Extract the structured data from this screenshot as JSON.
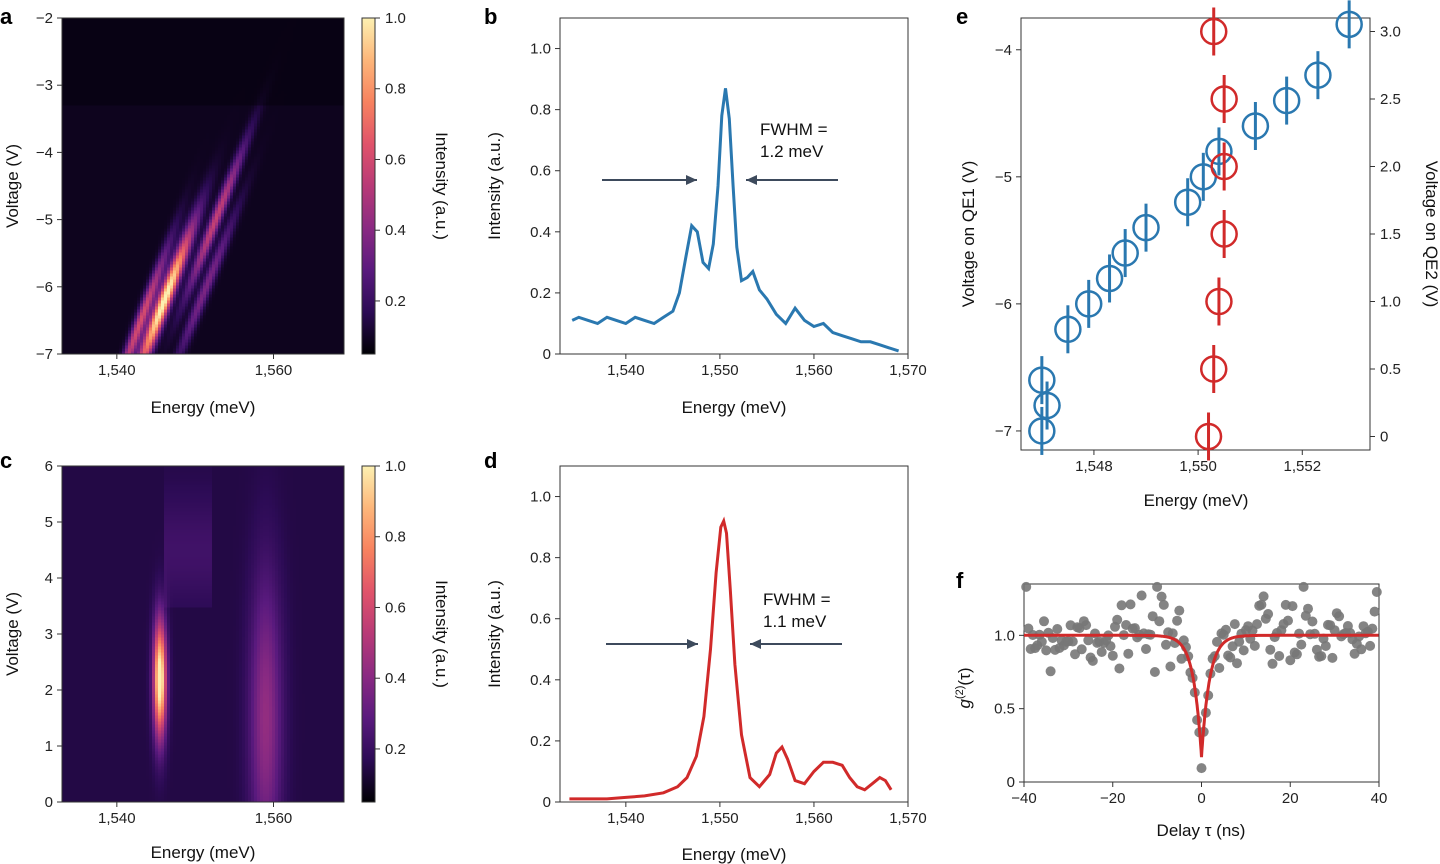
{
  "panels": {
    "a": {
      "label": "a",
      "type": "heatmap",
      "xlabel": "Energy (meV)",
      "ylabel": "Voltage (V)",
      "colorbar_label": "Intensity (a.u.)",
      "xlim": [
        1533,
        1569
      ],
      "ylim": [
        -7,
        -2
      ],
      "xticks": [
        1540,
        1560
      ],
      "xtick_labels": [
        "1,540",
        "1,560"
      ],
      "yticks": [
        -7,
        -6,
        -5,
        -4,
        -3,
        -2
      ],
      "ytick_labels": [
        "−7",
        "−6",
        "−5",
        "−4",
        "−3",
        "−2"
      ],
      "cbar_ticks": [
        0.2,
        0.4,
        0.6,
        0.8,
        1.0
      ],
      "cbar_tick_labels": [
        "0.2",
        "0.4",
        "0.6",
        "0.8",
        "1.0"
      ]
    },
    "b": {
      "label": "b",
      "xlabel": "Energy (meV)",
      "ylabel": "Intensity (a.u.)",
      "xticks": [
        1540,
        1550,
        1560,
        1570
      ],
      "xtick_labels": [
        "1,540",
        "1,550",
        "1,560",
        "1,570"
      ],
      "yticks": [
        0,
        0.2,
        0.4,
        0.6,
        0.8,
        1.0
      ],
      "ytick_labels": [
        "0",
        "0.2",
        "0.4",
        "0.6",
        "0.8",
        "1.0"
      ],
      "annotation_line1": "FWHM =",
      "annotation_line2": "1.2 meV"
    },
    "c": {
      "label": "c",
      "xlabel": "Energy (meV)",
      "ylabel": "Voltage (V)",
      "colorbar_label": "Intensity (a.u.)",
      "xticks": [
        1540,
        1560
      ],
      "xtick_labels": [
        "1,540",
        "1,560"
      ],
      "yticks": [
        0,
        1,
        2,
        3,
        4,
        5,
        6
      ],
      "ytick_labels": [
        "0",
        "1",
        "2",
        "3",
        "4",
        "5",
        "6"
      ],
      "cbar_ticks": [
        0.2,
        0.4,
        0.6,
        0.8,
        1.0
      ],
      "cbar_tick_labels": [
        "0.2",
        "0.4",
        "0.6",
        "0.8",
        "1.0"
      ]
    },
    "d": {
      "label": "d",
      "xlabel": "Energy (meV)",
      "ylabel": "Intensity (a.u.)",
      "xticks": [
        1540,
        1550,
        1560,
        1570
      ],
      "xtick_labels": [
        "1,540",
        "1,550",
        "1,560",
        "1,570"
      ],
      "yticks": [
        0,
        0.2,
        0.4,
        0.6,
        0.8,
        1.0
      ],
      "ytick_labels": [
        "0",
        "0.2",
        "0.4",
        "0.6",
        "0.8",
        "1.0"
      ],
      "annotation_line1": "FWHM =",
      "annotation_line2": "1.1 meV"
    },
    "e": {
      "label": "e",
      "xlabel": "Energy (meV)",
      "ylabel_left": "Voltage on QE1 (V)",
      "ylabel_right": "Voltage on QE2 (V)",
      "xticks": [
        1548,
        1550,
        1552
      ],
      "xtick_labels": [
        "1,548",
        "1,550",
        "1,552"
      ],
      "yticks_left": [
        -7,
        -6,
        -5,
        -4
      ],
      "ytick_labels_left": [
        "−7",
        "−6",
        "−5",
        "−4"
      ],
      "yticks_right": [
        0,
        0.5,
        1.0,
        1.5,
        2.0,
        2.5,
        3.0
      ],
      "ytick_labels_right": [
        "0",
        "0.5",
        "1.0",
        "1.5",
        "2.0",
        "2.5",
        "3.0"
      ]
    },
    "f": {
      "label": "f",
      "xlabel": "Delay τ (ns)",
      "ylabel": "g(2)(τ)",
      "ylabel_main": "g",
      "ylabel_sup": "(2)",
      "ylabel_tail": "(τ)",
      "xticks": [
        -40,
        -20,
        0,
        20,
        40
      ],
      "xtick_labels": [
        "−40",
        "−20",
        "0",
        "20",
        "40"
      ],
      "yticks": [
        0,
        0.5,
        1.0
      ],
      "ytick_labels": [
        "0",
        "0.5",
        "1.0"
      ]
    }
  },
  "colors": {
    "blue": "#2a78b0",
    "red": "#d12a2a",
    "grey": "#777777",
    "arrow": "#3d4a5c",
    "colormap": [
      "#000004",
      "#2c0b55",
      "#5a1a7e",
      "#8a2a82",
      "#b83a77",
      "#e0536a",
      "#f7825f",
      "#fdb67a",
      "#fcf0b1"
    ]
  },
  "chart_data": [
    {
      "panel": "a",
      "type": "heatmap",
      "description_note": "",
      "xlim": [
        1533,
        1569
      ],
      "ylim": [
        -7,
        -2
      ],
      "bands": [
        {
          "e_at_-7": 1543.5,
          "slope_meV_per_V": 3.2,
          "peak_voltage": -6.2,
          "amp": 1.0,
          "width": 0.9
        },
        {
          "e_at_-7": 1541.5,
          "slope_meV_per_V": 3.1,
          "peak_voltage": -6.5,
          "amp": 0.55,
          "width": 0.7
        },
        {
          "e_at_-7": 1546.0,
          "slope_meV_per_V": 3.3,
          "peak_voltage": -5.0,
          "amp": 0.5,
          "width": 0.7
        },
        {
          "e_at_-7": 1548.0,
          "slope_meV_per_V": 3.4,
          "peak_voltage": -6.0,
          "amp": 0.3,
          "width": 0.7
        }
      ],
      "clim": [
        0.05,
        1.0
      ]
    },
    {
      "panel": "b",
      "type": "line",
      "series": [
        {
          "color": "blue",
          "x": [
            1534.3,
            1535,
            1536,
            1537,
            1538,
            1539,
            1540,
            1541,
            1542,
            1543,
            1544,
            1545,
            1545.7,
            1546.4,
            1547,
            1547.6,
            1548.2,
            1548.8,
            1549.3,
            1549.8,
            1550.2,
            1550.6,
            1551.0,
            1551.4,
            1551.8,
            1552.3,
            1552.9,
            1553.5,
            1554.2,
            1555,
            1556,
            1557,
            1558,
            1559,
            1560,
            1561,
            1562,
            1563,
            1564,
            1565,
            1566,
            1567,
            1568,
            1569
          ],
          "y": [
            0.11,
            0.12,
            0.11,
            0.1,
            0.12,
            0.11,
            0.1,
            0.12,
            0.11,
            0.1,
            0.12,
            0.14,
            0.2,
            0.32,
            0.42,
            0.4,
            0.3,
            0.28,
            0.36,
            0.55,
            0.78,
            0.87,
            0.77,
            0.55,
            0.35,
            0.24,
            0.25,
            0.27,
            0.21,
            0.18,
            0.13,
            0.1,
            0.15,
            0.11,
            0.09,
            0.1,
            0.07,
            0.06,
            0.05,
            0.04,
            0.04,
            0.03,
            0.02,
            0.01
          ]
        }
      ],
      "xlim": [
        1533,
        1570
      ],
      "ylim": [
        0,
        1.1
      ]
    },
    {
      "panel": "c",
      "type": "heatmap",
      "xlim": [
        1533,
        1569
      ],
      "ylim": [
        0,
        6
      ],
      "bands": [
        {
          "energy": 1545.5,
          "v_center": 2.2,
          "v_sigma": 1.0,
          "amp": 1.0,
          "width": 0.8
        },
        {
          "energy": 1559.0,
          "v_center": 1.5,
          "v_sigma": 2.5,
          "amp": 0.3,
          "width": 2.0
        }
      ],
      "clim": [
        0.05,
        1.0
      ]
    },
    {
      "panel": "d",
      "type": "line",
      "series": [
        {
          "color": "red",
          "x": [
            1534,
            1536,
            1538,
            1540,
            1542,
            1544,
            1545.5,
            1546.5,
            1547.5,
            1548.3,
            1549.0,
            1549.6,
            1550.1,
            1550.4,
            1550.7,
            1551.1,
            1551.6,
            1552.3,
            1553.2,
            1554.2,
            1555.3,
            1556.0,
            1556.6,
            1557.2,
            1558.0,
            1559.0,
            1560.0,
            1561.0,
            1562.0,
            1563.0,
            1563.8,
            1564.6,
            1565.4,
            1566.2,
            1567.0,
            1567.6,
            1568.2
          ],
          "y": [
            0.01,
            0.01,
            0.01,
            0.015,
            0.02,
            0.03,
            0.05,
            0.08,
            0.15,
            0.28,
            0.5,
            0.75,
            0.9,
            0.92,
            0.88,
            0.7,
            0.45,
            0.22,
            0.08,
            0.05,
            0.09,
            0.16,
            0.18,
            0.14,
            0.07,
            0.06,
            0.1,
            0.13,
            0.13,
            0.12,
            0.08,
            0.05,
            0.04,
            0.06,
            0.08,
            0.07,
            0.04
          ]
        }
      ],
      "xlim": [
        1533,
        1570
      ],
      "ylim": [
        0,
        1.1
      ]
    },
    {
      "panel": "e",
      "type": "scatter",
      "xlim": [
        1546.6,
        1553.3
      ],
      "series": [
        {
          "axis": "left",
          "color": "blue",
          "ylim": [
            -7.15,
            -3.75
          ],
          "x": [
            1547.0,
            1547.1,
            1547.0,
            1547.5,
            1547.9,
            1548.3,
            1548.6,
            1549.0,
            1549.8,
            1550.1,
            1550.4,
            1551.1,
            1551.7,
            1552.3,
            1552.9
          ],
          "y": [
            -7.0,
            -6.8,
            -6.6,
            -6.2,
            -6.0,
            -5.8,
            -5.6,
            -5.4,
            -5.2,
            -5.0,
            -4.8,
            -4.6,
            -4.4,
            -4.2,
            -3.8
          ]
        },
        {
          "axis": "right",
          "color": "red",
          "ylim": [
            -0.1,
            3.1
          ],
          "x": [
            1550.2,
            1550.3,
            1550.4,
            1550.5,
            1550.5,
            1550.5,
            1550.3
          ],
          "y": [
            0.0,
            0.5,
            1.0,
            1.5,
            2.0,
            2.5,
            3.0
          ]
        }
      ]
    },
    {
      "panel": "f",
      "type": "scatter",
      "xlim": [
        -40,
        40
      ],
      "ylim": [
        0,
        1.35
      ],
      "points_color": "grey",
      "fit_color": "red",
      "fit": {
        "baseline": 1.0,
        "min": 0.17,
        "center": 0,
        "tau_ns": 1.8
      },
      "scatter_mean": 1.0,
      "scatter_spread": 0.12
    }
  ]
}
